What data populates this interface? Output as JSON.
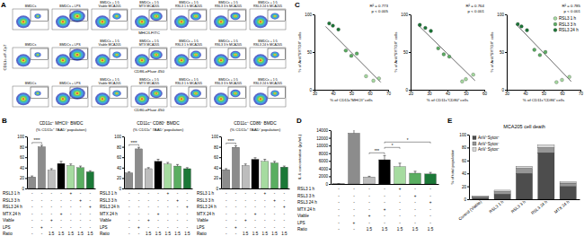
{
  "chart_data": [
    {
      "type": "flow",
      "panel": "A",
      "y_label": "CD11c-eF-Cy7",
      "titles": [
        "BMDCs",
        "BMDCs + LPS",
        "BMDCs + 1:5 Viable MCA205",
        "BMDCs + 1:5 MTX MCA205",
        "BMDCs + 1:5 RSL3 1 h MCA205",
        "BMDCs + 1:5 RSL3 3 h MCA205",
        "BMDCs + 1:5 RSL3 24 h MCA205"
      ],
      "x_labels": [
        "MHCII-FITC",
        "CD86-eFluor 450",
        "CD80-eFluor 450"
      ]
    },
    {
      "type": "bar",
      "panel": "B",
      "title": "CD11c⁺ MHCII⁺ BMDC",
      "subtitle": "(% CD11c⁺ 7AAD⁻ population)",
      "categories": [
        null,
        null,
        null,
        null,
        null,
        null,
        null
      ],
      "values": [
        22,
        80,
        35,
        48,
        44,
        40,
        32
      ],
      "errors": [
        2,
        3,
        3,
        4,
        3,
        3,
        2
      ],
      "colors": [
        "#8c8c8c",
        "#8c8c8c",
        "#bdbdbd",
        "#000000",
        "#a6dba0",
        "#5aae61",
        "#1b7837"
      ],
      "ylim": [
        0,
        100
      ],
      "yticks": [
        0,
        20,
        40,
        60,
        80,
        100
      ],
      "significance": [
        {
          "from": 0,
          "to": 1,
          "label": "****"
        }
      ],
      "conditions": {
        "rows": [
          "RSL3 1 h",
          "RSL3 3 h",
          "RSL3 24 h",
          "MTX 24 h",
          "Viable",
          "LPS",
          "Ratio"
        ],
        "cells": [
          [
            "-",
            "-",
            "-",
            "-",
            "+",
            "-",
            "-"
          ],
          [
            "-",
            "-",
            "-",
            "-",
            "-",
            "+",
            "-"
          ],
          [
            "-",
            "-",
            "-",
            "-",
            "-",
            "-",
            "+"
          ],
          [
            "-",
            "-",
            "-",
            "+",
            "-",
            "-",
            "-"
          ],
          [
            "-",
            "-",
            "+",
            "-",
            "-",
            "-",
            "-"
          ],
          [
            "-",
            "+",
            "-",
            "-",
            "-",
            "-",
            "-"
          ],
          [
            "-",
            "-",
            "1:5",
            "1:5",
            "1:5",
            "1:5",
            "1:5"
          ]
        ]
      }
    },
    {
      "type": "bar",
      "title": "CD11c⁺ CD80⁺ BMDC",
      "subtitle": "(% CD11c⁺ 7AAD⁻ population)",
      "categories": [
        null,
        null,
        null,
        null,
        null,
        null,
        null
      ],
      "values": [
        30,
        76,
        38,
        52,
        47,
        43,
        38
      ],
      "errors": [
        2,
        3,
        2,
        4,
        3,
        3,
        2
      ],
      "colors": [
        "#8c8c8c",
        "#8c8c8c",
        "#bdbdbd",
        "#000000",
        "#a6dba0",
        "#5aae61",
        "#1b7837"
      ],
      "ylim": [
        0,
        100
      ],
      "yticks": [
        0,
        20,
        40,
        60,
        80,
        100
      ],
      "significance": [
        {
          "from": 0,
          "to": 1,
          "label": "****"
        }
      ],
      "conditions": {
        "rows": [
          "RSL3 1 h",
          "RSL3 3 h",
          "RSL3 24 h",
          "MTX 24 h",
          "Viable",
          "LPS",
          "Ratio"
        ],
        "cells": [
          [
            "-",
            "-",
            "-",
            "-",
            "+",
            "-",
            "-"
          ],
          [
            "-",
            "-",
            "-",
            "-",
            "-",
            "+",
            "-"
          ],
          [
            "-",
            "-",
            "-",
            "-",
            "-",
            "-",
            "+"
          ],
          [
            "-",
            "-",
            "-",
            "+",
            "-",
            "-",
            "-"
          ],
          [
            "-",
            "-",
            "+",
            "-",
            "-",
            "-",
            "-"
          ],
          [
            "-",
            "+",
            "-",
            "-",
            "-",
            "-",
            "-"
          ],
          [
            "-",
            "-",
            "1:5",
            "1:5",
            "1:5",
            "1:5",
            "1:5"
          ]
        ]
      }
    },
    {
      "type": "bar",
      "title": "CD11c⁺ CD86⁺ BMDC",
      "subtitle": "(% CD11c⁺ 7AAD⁻ population)",
      "categories": [
        null,
        null,
        null,
        null,
        null,
        null,
        null
      ],
      "values": [
        36,
        79,
        44,
        56,
        52,
        49,
        41
      ],
      "errors": [
        2,
        3,
        3,
        3,
        4,
        3,
        2
      ],
      "colors": [
        "#8c8c8c",
        "#8c8c8c",
        "#bdbdbd",
        "#000000",
        "#a6dba0",
        "#5aae61",
        "#1b7837"
      ],
      "ylim": [
        0,
        100
      ],
      "yticks": [
        0,
        20,
        40,
        60,
        80,
        100
      ],
      "significance": [
        {
          "from": 0,
          "to": 1,
          "label": "****"
        }
      ],
      "conditions": {
        "rows": [
          "RSL3 1 h",
          "RSL3 3 h",
          "RSL3 24 h",
          "MTX 24 h",
          "Viable",
          "LPS",
          "Ratio"
        ],
        "cells": [
          [
            "-",
            "-",
            "-",
            "-",
            "+",
            "-",
            "-"
          ],
          [
            "-",
            "-",
            "-",
            "-",
            "-",
            "+",
            "-"
          ],
          [
            "-",
            "-",
            "-",
            "-",
            "-",
            "-",
            "+"
          ],
          [
            "-",
            "-",
            "-",
            "+",
            "-",
            "-",
            "-"
          ],
          [
            "-",
            "-",
            "+",
            "-",
            "-",
            "-",
            "-"
          ],
          [
            "-",
            "+",
            "-",
            "-",
            "-",
            "-",
            "-"
          ],
          [
            "-",
            "-",
            "1:5",
            "1:5",
            "1:5",
            "1:5",
            "1:5"
          ]
        ]
      }
    },
    {
      "type": "scatter",
      "panel": "C",
      "x_label": "% of CD11c⁺MHCII⁺ cells",
      "y_label": "% of AnV⁺SYTOX⁺ cells",
      "xlim": [
        30,
        70
      ],
      "xticks": [
        30,
        40,
        50,
        60,
        70
      ],
      "ylim": [
        0,
        100
      ],
      "yticks": [
        0,
        50,
        100
      ],
      "series": [
        {
          "color": "#a6dba0",
          "x": [
            62,
            58,
            65
          ],
          "values": [
            12,
            18,
            15
          ]
        },
        {
          "color": "#5aae61",
          "x": [
            50,
            47,
            53
          ],
          "values": [
            45,
            52,
            48
          ]
        },
        {
          "color": "#1b7837",
          "x": [
            40,
            43,
            38
          ],
          "values": [
            85,
            80,
            88
          ]
        }
      ],
      "fit": {
        "x": [
          36,
          66
        ],
        "values": [
          84,
          10
        ]
      },
      "annotations": [
        "R² = 0.773",
        "p < 0.005"
      ]
    },
    {
      "type": "scatter",
      "x_label": "% of CD11c⁺CD80⁺ cells",
      "y_label": "% of AnV⁺SYTOX⁺ cells",
      "xlim": [
        20,
        60
      ],
      "xticks": [
        20,
        30,
        40,
        50,
        60
      ],
      "ylim": [
        0,
        100
      ],
      "yticks": [
        0,
        50,
        100
      ],
      "series": [
        {
          "color": "#a6dba0",
          "x": [
            50,
            54,
            48
          ],
          "values": [
            14,
            20,
            11
          ]
        },
        {
          "color": "#5aae61",
          "x": [
            38,
            35,
            41
          ],
          "values": [
            47,
            55,
            44
          ]
        },
        {
          "color": "#1b7837",
          "x": [
            28,
            25,
            31
          ],
          "values": [
            82,
            86,
            78
          ]
        }
      ],
      "fit": {
        "x": [
          24,
          55
        ],
        "values": [
          86,
          12
        ]
      },
      "annotations": [
        "R² = 0.764",
        "p < 0.001"
      ]
    },
    {
      "type": "scatter",
      "x_label": "% of CD11c⁺CD86⁺ cells",
      "y_label": "% of AnV⁺SYTOX⁺ cells",
      "xlim": [
        30,
        70
      ],
      "xticks": [
        30,
        40,
        50,
        60,
        70
      ],
      "ylim": [
        0,
        100
      ],
      "yticks": [
        0,
        50,
        100
      ],
      "legend": "top-right",
      "series": [
        {
          "name": "RSL3 1 h",
          "color": "#a6dba0",
          "x": [
            60,
            64,
            57
          ],
          "values": [
            13,
            17,
            10
          ]
        },
        {
          "name": "RSL3 3 h",
          "color": "#5aae61",
          "x": [
            48,
            45,
            51
          ],
          "values": [
            46,
            53,
            50
          ]
        },
        {
          "name": "RSL3 24 h",
          "color": "#1b7837",
          "x": [
            38,
            41,
            36
          ],
          "values": [
            84,
            79,
            87
          ]
        }
      ],
      "fit": {
        "x": [
          35,
          65
        ],
        "values": [
          87,
          11
        ]
      },
      "annotations": [
        "R² = 0.785",
        "p < 0.001"
      ]
    },
    {
      "type": "bar",
      "panel": "D",
      "y_label": "IL-6 concentration (pg/mL)",
      "categories": [
        null,
        null,
        null,
        null,
        null,
        null,
        null
      ],
      "values": [
        50,
        13200,
        1800,
        6300,
        4500,
        2800,
        2600
      ],
      "errors": [
        20,
        900,
        200,
        1100,
        900,
        500,
        400
      ],
      "colors": [
        "#8c8c8c",
        "#8c8c8c",
        "#bdbdbd",
        "#000000",
        "#a6dba0",
        "#5aae61",
        "#1b7837"
      ],
      "ylim": [
        0,
        14000
      ],
      "yticks": [
        0,
        2000,
        4000,
        6000,
        8000,
        10000,
        12000,
        14000
      ],
      "significance": [
        {
          "from": 2,
          "to": 3,
          "label": "***"
        },
        {
          "from": 3,
          "to": 4,
          "label": "*"
        },
        {
          "from": 3,
          "to": 6,
          "label": "*"
        }
      ],
      "conditions": {
        "rows": [
          "RSL3 1 h",
          "RSL3 3 h",
          "RSL3 24 h",
          "MTX 24 h",
          "Viable",
          "LPS",
          "Ratio"
        ],
        "cells": [
          [
            "-",
            "-",
            "-",
            "-",
            "+",
            "-",
            "-"
          ],
          [
            "-",
            "-",
            "-",
            "-",
            "-",
            "+",
            "-"
          ],
          [
            "-",
            "-",
            "-",
            "-",
            "-",
            "-",
            "+"
          ],
          [
            "-",
            "-",
            "-",
            "+",
            "-",
            "-",
            "-"
          ],
          [
            "-",
            "-",
            "+",
            "-",
            "-",
            "-",
            "-"
          ],
          [
            "-",
            "+",
            "-",
            "-",
            "-",
            "-",
            "-"
          ],
          [
            "-",
            "-",
            "1:5",
            "1:5",
            "1:5",
            "1:5",
            "1:5"
          ]
        ]
      }
    },
    {
      "type": "bar",
      "panel": "E",
      "stacked": true,
      "title": "MCA205 cell death",
      "y_label": "% of total population",
      "categories": [
        "Control (Viable)",
        "RSL3 1 h",
        "RSL3 3 h",
        "RSL3 24 h",
        "MTX 24 h"
      ],
      "series": [
        {
          "name": "AnV⁺Sytox⁺",
          "color": "#4d4d4d",
          "values": [
            2,
            8,
            40,
            72,
            20
          ]
        },
        {
          "name": "AnV⁺Sytox⁻",
          "color": "#969696",
          "values": [
            2,
            4,
            8,
            8,
            5
          ]
        },
        {
          "name": "AnV⁻Sytox⁺",
          "color": "#d9d9d9",
          "values": [
            1,
            2,
            3,
            4,
            2
          ]
        }
      ],
      "ylim": [
        0,
        100
      ],
      "yticks": [
        0,
        20,
        40,
        60,
        80,
        100
      ],
      "legend": "top-left"
    }
  ]
}
